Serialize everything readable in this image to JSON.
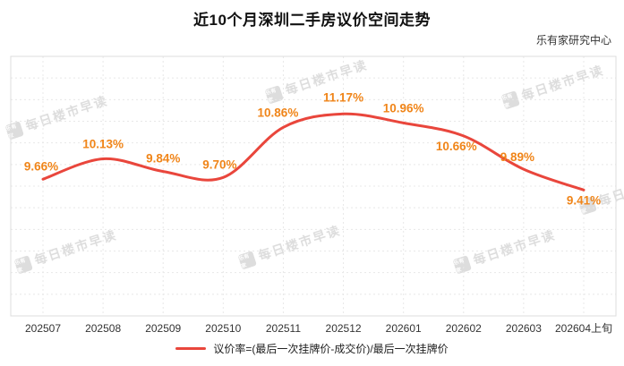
{
  "header": {
    "title": "近10个月深圳二手房议价空间走势",
    "source": "乐有家研究中心"
  },
  "legend": {
    "label": "议价率=(最后一次挂牌价-成交价)/最后一次挂牌价"
  },
  "watermark": {
    "logo": "乐有家",
    "text": "每日楼市早读"
  },
  "colors": {
    "line": "#e9463c",
    "data_label": "#f08519",
    "axis_text": "#333333",
    "grid": "#e8e8e8",
    "border": "#dddddd"
  },
  "chart_data": {
    "type": "line",
    "title": "近10个月深圳二手房议价空间走势",
    "categories": [
      "202507",
      "202508",
      "202509",
      "202510",
      "202511",
      "202512",
      "202601",
      "202602",
      "202603",
      "202604上旬"
    ],
    "values": [
      9.66,
      10.13,
      9.84,
      9.7,
      10.86,
      11.17,
      10.96,
      10.66,
      9.89,
      9.41
    ],
    "value_labels": [
      "9.66%",
      "10.13%",
      "9.84%",
      "9.70%",
      "10.86%",
      "11.17%",
      "10.96%",
      "10.66%",
      "9.89%",
      "9.41%"
    ],
    "xlabel": "",
    "ylabel": "",
    "ylim": [
      6.5,
      12.5
    ],
    "grid": true,
    "legend_position": "bottom",
    "series_name": "议价率=(最后一次挂牌价-成交价)/最后一次挂牌价"
  }
}
